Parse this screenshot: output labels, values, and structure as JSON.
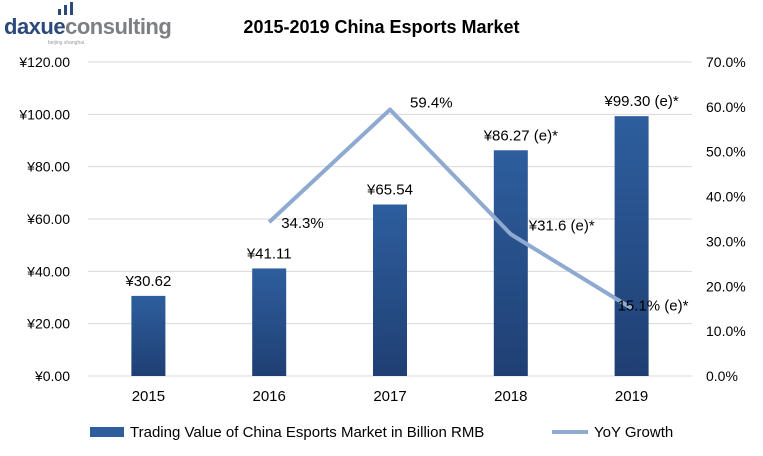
{
  "logo": {
    "text_primary": "daxue",
    "text_secondary": "consulting",
    "tagline": "beijing shanghai"
  },
  "colors": {
    "bar": "#2e5e9e",
    "bar_dark": "#1f3f73",
    "line": "#8faad0",
    "grid": "#d9d9d9"
  },
  "chart_data": {
    "type": "bar+line",
    "title": "2015-2019 China Esports Market",
    "categories": [
      "2015",
      "2016",
      "2017",
      "2018",
      "2019"
    ],
    "series": [
      {
        "name": "Trading Value of China Esports Market in Billion RMB",
        "type": "bar",
        "axis": "left",
        "values": [
          30.62,
          41.11,
          65.54,
          86.27,
          99.3
        ],
        "labels": [
          "¥30.62",
          "¥41.11",
          "¥65.54",
          "¥86.27 (e)*",
          "¥99.30 (e)*"
        ]
      },
      {
        "name": "YoY Growth",
        "type": "line",
        "axis": "right",
        "values": [
          null,
          34.3,
          59.4,
          31.6,
          15.1
        ],
        "labels": [
          "",
          "34.3%",
          "59.4%",
          "¥31.6 (e)*",
          "15.1% (e)*"
        ]
      }
    ],
    "left_axis": {
      "ylim": [
        0,
        120
      ],
      "ticks": [
        "¥0.00",
        "¥20.00",
        "¥40.00",
        "¥60.00",
        "¥80.00",
        "¥100.00",
        "¥120.00"
      ]
    },
    "right_axis": {
      "ylim": [
        0,
        70
      ],
      "ticks": [
        "0.0%",
        "10.0%",
        "20.0%",
        "30.0%",
        "40.0%",
        "50.0%",
        "60.0%",
        "70.0%"
      ]
    },
    "grid": true,
    "legend": "bottom"
  }
}
